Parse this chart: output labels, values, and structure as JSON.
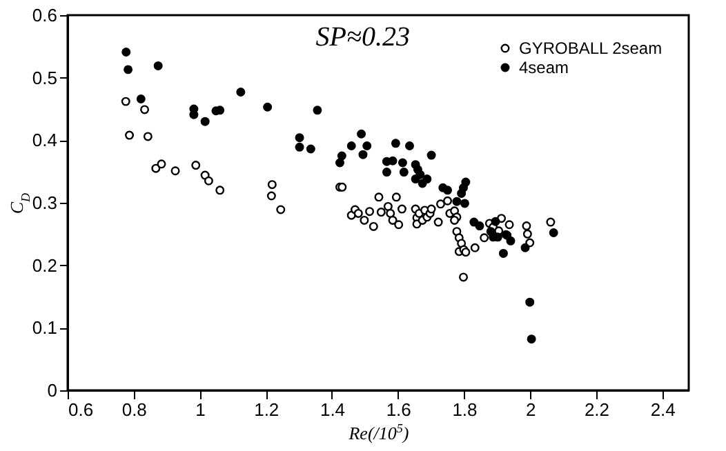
{
  "chart_data": {
    "type": "scatter",
    "xlabel": "Re(/10$^{5}$)",
    "ylabel": "C$_{D}$",
    "annotations": [
      "SP≈0.23"
    ],
    "xlim": [
      0.6,
      2.48
    ],
    "xticks": [
      0.6,
      0.8,
      1,
      1.2,
      1.4,
      1.6,
      1.8,
      2,
      2.2,
      2.4
    ],
    "ylim": [
      0,
      0.6
    ],
    "yticks": [
      0,
      0.1,
      0.2,
      0.3,
      0.4,
      0.5,
      0.6
    ],
    "grid": false,
    "legend": "top right",
    "marker": "circle",
    "series": [
      {
        "name": "GYROBALL 2seam",
        "color": "#ffffff",
        "x": [
          0.776,
          0.787,
          0.833,
          0.843,
          0.867,
          0.884,
          0.926,
          0.988,
          1.016,
          1.027,
          1.061,
          1.219,
          1.217,
          1.245,
          1.424,
          1.431,
          1.459,
          1.47,
          1.48,
          1.498,
          1.514,
          1.526,
          1.542,
          1.549,
          1.57,
          1.577,
          1.584,
          1.595,
          1.602,
          1.612,
          1.653,
          1.657,
          1.657,
          1.664,
          1.674,
          1.681,
          1.688,
          1.697,
          1.701,
          1.722,
          1.729,
          1.75,
          1.757,
          1.771,
          1.778,
          1.771,
          1.778,
          1.785,
          1.792,
          1.785,
          1.799,
          1.805,
          1.833,
          1.798,
          1.861,
          1.877,
          1.888,
          1.905,
          1.913,
          1.927,
          1.937,
          1.989,
          1.992,
          1.999,
          2.062
        ],
        "values": [
          0.462,
          0.408,
          0.449,
          0.406,
          0.355,
          0.362,
          0.351,
          0.36,
          0.344,
          0.335,
          0.32,
          0.329,
          0.311,
          0.289,
          0.325,
          0.325,
          0.28,
          0.289,
          0.283,
          0.272,
          0.286,
          0.262,
          0.309,
          0.285,
          0.294,
          0.283,
          0.272,
          0.309,
          0.265,
          0.29,
          0.29,
          0.276,
          0.266,
          0.283,
          0.272,
          0.288,
          0.277,
          0.283,
          0.29,
          0.269,
          0.298,
          0.303,
          0.283,
          0.287,
          0.277,
          0.272,
          0.254,
          0.244,
          0.235,
          0.222,
          0.225,
          0.221,
          0.228,
          0.181,
          0.244,
          0.267,
          0.261,
          0.255,
          0.275,
          0.249,
          0.265,
          0.263,
          0.25,
          0.236,
          0.269
        ]
      },
      {
        "name": "4seam",
        "color": "#000000",
        "x": [
          0.777,
          0.783,
          0.822,
          0.874,
          0.982,
          0.982,
          1.016,
          1.049,
          1.061,
          1.124,
          1.205,
          1.302,
          1.302,
          1.336,
          1.356,
          1.424,
          1.43,
          1.459,
          1.489,
          1.494,
          1.506,
          1.566,
          1.566,
          1.584,
          1.614,
          1.618,
          1.593,
          1.635,
          1.701,
          1.653,
          1.66,
          1.653,
          1.667,
          1.688,
          1.674,
          1.736,
          1.75,
          1.805,
          1.798,
          1.792,
          1.802,
          1.778,
          1.83,
          1.847,
          1.881,
          1.895,
          1.888,
          1.902,
          1.93,
          1.941,
          1.919,
          1.985,
          1.999,
          2.004,
          2.071
        ],
        "values": [
          0.541,
          0.513,
          0.466,
          0.519,
          0.45,
          0.441,
          0.43,
          0.447,
          0.448,
          0.477,
          0.453,
          0.404,
          0.389,
          0.386,
          0.448,
          0.364,
          0.375,
          0.391,
          0.41,
          0.377,
          0.391,
          0.366,
          0.349,
          0.367,
          0.364,
          0.349,
          0.395,
          0.391,
          0.376,
          0.361,
          0.353,
          0.338,
          0.345,
          0.338,
          0.331,
          0.324,
          0.32,
          0.333,
          0.324,
          0.315,
          0.299,
          0.302,
          0.269,
          0.263,
          0.254,
          0.27,
          0.245,
          0.245,
          0.248,
          0.239,
          0.219,
          0.228,
          0.141,
          0.082,
          0.252
        ]
      }
    ]
  }
}
